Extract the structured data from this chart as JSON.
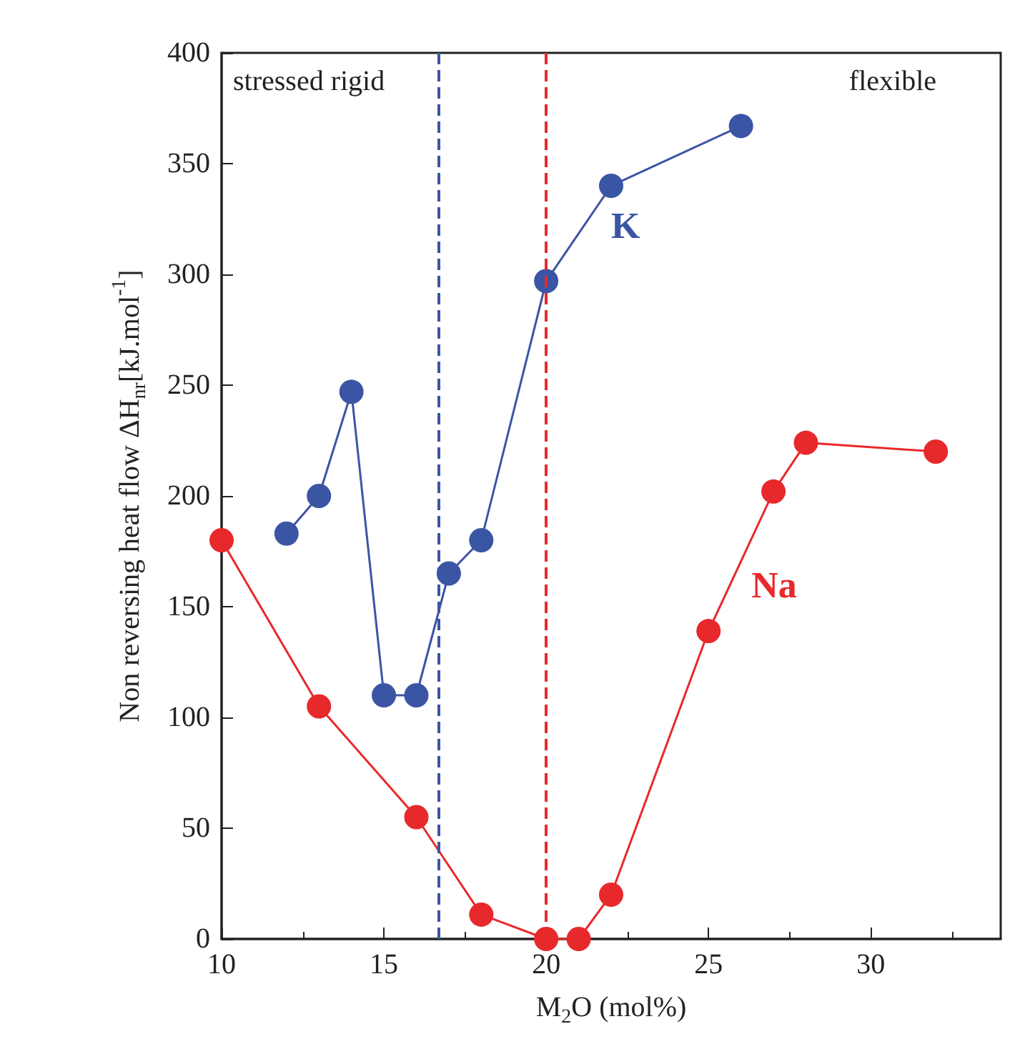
{
  "chart_data": {
    "type": "line",
    "xlabel": "M$_{2}$O (mol%)",
    "ylabel": "Non reversing heat flow ΔH$_{nr}$[kJ.mol$^{-1}$]",
    "xlim": [
      10,
      34
    ],
    "xticks": [
      10,
      15,
      20,
      25,
      30
    ],
    "ylim": [
      0,
      400
    ],
    "yticks": [
      0,
      50,
      100,
      150,
      200,
      250,
      300,
      350,
      400
    ],
    "series": [
      {
        "name": "K",
        "color": "#3b55a5",
        "x": [
          12,
          13,
          14,
          15,
          16,
          17,
          18,
          20,
          22,
          26
        ],
        "values": [
          183,
          200,
          247,
          110,
          110,
          165,
          180,
          297,
          340,
          367
        ]
      },
      {
        "name": "Na",
        "color": "#e8292b",
        "x": [
          10,
          13,
          16,
          18,
          20,
          21,
          22,
          25,
          27,
          28,
          32
        ],
        "values": [
          180,
          105,
          55,
          11,
          0,
          0,
          20,
          139,
          202,
          224,
          220
        ]
      }
    ],
    "ref_lines": [
      {
        "axis": "x",
        "value": 16.7,
        "color": "#3b55a5",
        "line_style": "dashed"
      },
      {
        "axis": "x",
        "value": 20,
        "color": "#e8292b",
        "line_style": "dashed"
      }
    ],
    "annotations": [
      "stressed rigid",
      "flexible"
    ],
    "grid": false,
    "legend": false,
    "marker": "circle",
    "line_style": "solid"
  }
}
